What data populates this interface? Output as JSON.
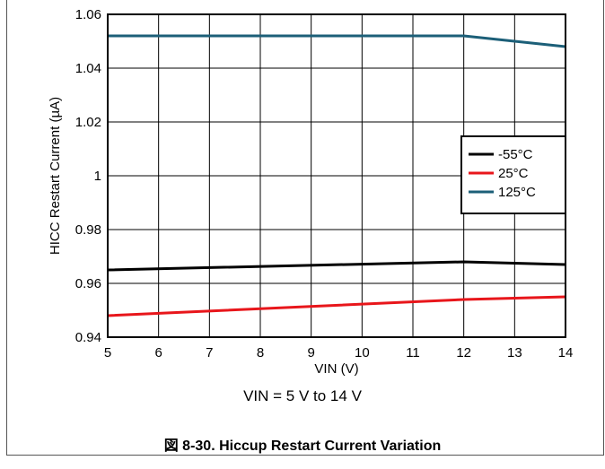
{
  "chart_data": {
    "type": "line",
    "xlabel": "VIN (V)",
    "ylabel": "HICC Restart Current (µA)",
    "xlim": [
      5,
      14
    ],
    "ylim": [
      0.94,
      1.06
    ],
    "x_ticks": [
      "5",
      "6",
      "7",
      "8",
      "9",
      "10",
      "11",
      "12",
      "13",
      "14"
    ],
    "y_ticks": [
      "0.94",
      "0.96",
      "0.98",
      "1",
      "1.02",
      "1.04",
      "1.06"
    ],
    "grid": true,
    "legend_position": "right",
    "series": [
      {
        "name": "-55°C",
        "color": "#000000",
        "x": [
          5,
          12,
          14
        ],
        "y": [
          0.965,
          0.968,
          0.967
        ]
      },
      {
        "name": "25°C",
        "color": "#e8161b",
        "x": [
          5,
          12,
          14
        ],
        "y": [
          0.948,
          0.954,
          0.955
        ]
      },
      {
        "name": "125°C",
        "color": "#1c5f78",
        "x": [
          5,
          12,
          14
        ],
        "y": [
          1.052,
          1.052,
          1.048
        ]
      }
    ]
  },
  "subtitle": "VIN = 5 V to 14 V",
  "caption": "図 8-30. Hiccup Restart Current Variation"
}
